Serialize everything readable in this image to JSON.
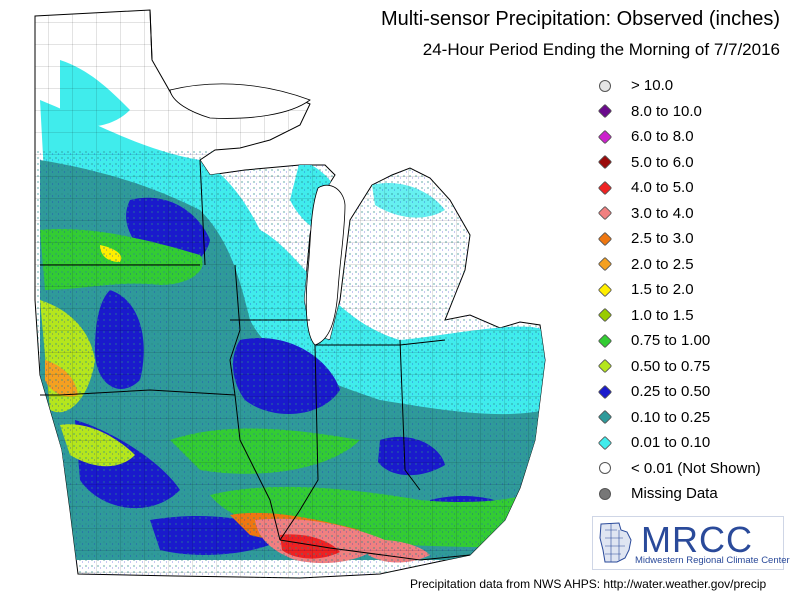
{
  "title": "Multi-sensor Precipitation:  Observed (inches)",
  "subtitle": "24-Hour Period Ending the Morning of 7/7/2016",
  "legend": [
    {
      "label": "> 10.0",
      "color": "#e6e6e6"
    },
    {
      "label": "8.0 to 10.0",
      "color": "#6a0a8c"
    },
    {
      "label": "6.0 to 8.0",
      "color": "#cc22cc"
    },
    {
      "label": "5.0 to 6.0",
      "color": "#9a0a0a"
    },
    {
      "label": "4.0 to 5.0",
      "color": "#ee2222"
    },
    {
      "label": "3.0 to 4.0",
      "color": "#f08080"
    },
    {
      "label": "2.5 to 3.0",
      "color": "#ee7711"
    },
    {
      "label": "2.0 to 2.5",
      "color": "#f4a020"
    },
    {
      "label": "1.5 to 2.0",
      "color": "#ffee00"
    },
    {
      "label": "1.0 to 1.5",
      "color": "#99cc00"
    },
    {
      "label": "0.75 to 1.00",
      "color": "#33cc33"
    },
    {
      "label": "0.50 to 0.75",
      "color": "#b5e61d"
    },
    {
      "label": "0.25 to 0.50",
      "color": "#1a1acc"
    },
    {
      "label": "0.10 to 0.25",
      "color": "#2f9a9a"
    },
    {
      "label": "0.01 to 0.10",
      "color": "#40ecec"
    },
    {
      "label": "< 0.01 (Not Shown)",
      "color": "#ffffff"
    },
    {
      "label": "Missing Data",
      "color": "#777777"
    }
  ],
  "logo": {
    "text": "MRCC",
    "subtitle": "Midwestern Regional Climate Center"
  },
  "source": "Precipitation data from NWS AHPS: http://water.weather.gov/precip"
}
